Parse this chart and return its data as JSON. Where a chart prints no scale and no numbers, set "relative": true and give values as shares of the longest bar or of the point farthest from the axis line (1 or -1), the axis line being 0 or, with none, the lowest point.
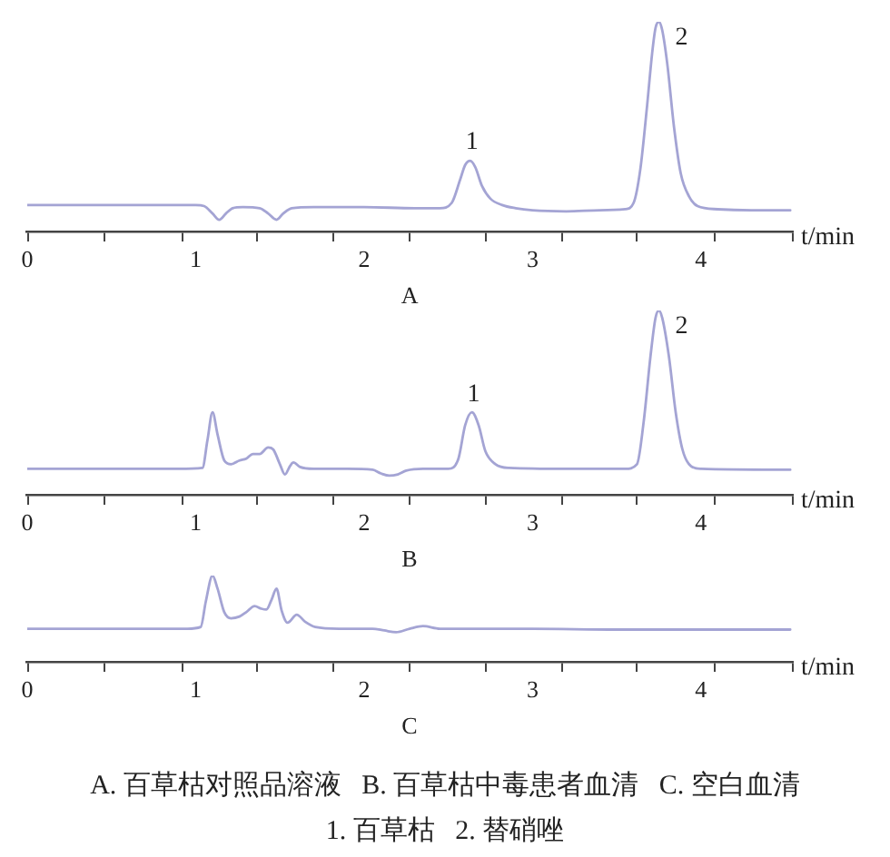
{
  "chart_data": [
    {
      "type": "line",
      "title": "A",
      "xlabel": "t/min",
      "relative": true,
      "color": "#a4a4d4",
      "xlim": [
        0,
        4.54
      ],
      "xticks": [
        0,
        {
          "value": 0.46,
          "label": null
        },
        {
          "value": 0.92,
          "label": null
        },
        1,
        {
          "value": 1.36,
          "label": null
        },
        {
          "value": 1.82,
          "label": null
        },
        2,
        {
          "value": 2.27,
          "label": null
        },
        {
          "value": 2.72,
          "label": null
        },
        3,
        {
          "value": 3.18,
          "label": null
        },
        {
          "value": 3.62,
          "label": null
        },
        4,
        {
          "value": 4.08,
          "label": null
        },
        {
          "value": 4.54,
          "label": null
        }
      ],
      "x": [
        0,
        0.5,
        1.0,
        1.05,
        1.1,
        1.14,
        1.18,
        1.22,
        1.28,
        1.38,
        1.43,
        1.48,
        1.52,
        1.57,
        1.7,
        2.0,
        2.3,
        2.45,
        2.52,
        2.57,
        2.6,
        2.63,
        2.66,
        2.7,
        2.75,
        2.82,
        2.9,
        3.0,
        3.2,
        3.4,
        3.55,
        3.6,
        3.64,
        3.68,
        3.71,
        3.73,
        3.75,
        3.77,
        3.8,
        3.84,
        3.88,
        3.93,
        3.98,
        4.1,
        4.3,
        4.53
      ],
      "values": [
        0.13,
        0.13,
        0.13,
        0.125,
        0.09,
        0.06,
        0.09,
        0.115,
        0.12,
        0.115,
        0.09,
        0.06,
        0.09,
        0.115,
        0.12,
        0.12,
        0.115,
        0.115,
        0.14,
        0.25,
        0.32,
        0.34,
        0.31,
        0.22,
        0.16,
        0.13,
        0.115,
        0.105,
        0.1,
        0.105,
        0.11,
        0.14,
        0.3,
        0.6,
        0.85,
        0.97,
        1.0,
        0.96,
        0.8,
        0.5,
        0.28,
        0.17,
        0.125,
        0.11,
        0.105,
        0.105
      ],
      "annotations": [
        {
          "text": "1",
          "x": 2.63,
          "y": 0.34
        },
        {
          "text": "2",
          "x": 3.75,
          "y": 1.0
        }
      ]
    },
    {
      "type": "line",
      "title": "B",
      "xlabel": "t/min",
      "relative": true,
      "color": "#a4a4d4",
      "xlim": [
        0,
        4.54
      ],
      "xticks": [
        0,
        {
          "value": 0.46,
          "label": null
        },
        {
          "value": 0.92,
          "label": null
        },
        1,
        {
          "value": 1.36,
          "label": null
        },
        {
          "value": 1.82,
          "label": null
        },
        2,
        {
          "value": 2.27,
          "label": null
        },
        {
          "value": 2.72,
          "label": null
        },
        3,
        {
          "value": 3.18,
          "label": null
        },
        {
          "value": 3.62,
          "label": null
        },
        4,
        {
          "value": 4.08,
          "label": null
        },
        {
          "value": 4.54,
          "label": null
        }
      ],
      "x": [
        0,
        0.9,
        1.04,
        1.07,
        1.1,
        1.13,
        1.17,
        1.21,
        1.26,
        1.3,
        1.34,
        1.38,
        1.43,
        1.46,
        1.5,
        1.53,
        1.56,
        1.58,
        1.62,
        1.7,
        1.9,
        2.05,
        2.1,
        2.15,
        2.2,
        2.25,
        2.35,
        2.5,
        2.56,
        2.6,
        2.64,
        2.68,
        2.72,
        2.78,
        2.86,
        3.2,
        3.55,
        3.62,
        3.66,
        3.7,
        3.73,
        3.75,
        3.77,
        3.81,
        3.85,
        3.89,
        3.94,
        4.0,
        4.53
      ],
      "values": [
        0.145,
        0.145,
        0.15,
        0.3,
        0.45,
        0.33,
        0.19,
        0.17,
        0.19,
        0.2,
        0.225,
        0.225,
        0.26,
        0.25,
        0.17,
        0.115,
        0.16,
        0.18,
        0.155,
        0.145,
        0.145,
        0.14,
        0.12,
        0.108,
        0.115,
        0.135,
        0.145,
        0.145,
        0.2,
        0.38,
        0.45,
        0.38,
        0.24,
        0.17,
        0.15,
        0.145,
        0.145,
        0.17,
        0.4,
        0.75,
        0.96,
        1.0,
        0.96,
        0.75,
        0.45,
        0.25,
        0.16,
        0.145,
        0.14
      ],
      "annotations": [
        {
          "text": "1",
          "x": 2.64,
          "y": 0.45
        },
        {
          "text": "2",
          "x": 3.75,
          "y": 1.0
        }
      ]
    },
    {
      "type": "line",
      "title": "C",
      "xlabel": "t/min",
      "relative": true,
      "color": "#a4a4d4",
      "xlim": [
        0,
        4.54
      ],
      "xticks": [
        0,
        {
          "value": 0.46,
          "label": null
        },
        {
          "value": 0.92,
          "label": null
        },
        1,
        {
          "value": 1.36,
          "label": null
        },
        {
          "value": 1.82,
          "label": null
        },
        2,
        {
          "value": 2.27,
          "label": null
        },
        {
          "value": 2.72,
          "label": null
        },
        3,
        {
          "value": 3.18,
          "label": null
        },
        {
          "value": 3.62,
          "label": null
        },
        4,
        {
          "value": 4.08,
          "label": null
        },
        {
          "value": 4.54,
          "label": null
        }
      ],
      "x": [
        0,
        0.95,
        1.03,
        1.06,
        1.1,
        1.13,
        1.17,
        1.21,
        1.26,
        1.3,
        1.35,
        1.39,
        1.42,
        1.45,
        1.48,
        1.51,
        1.545,
        1.6,
        1.65,
        1.71,
        1.85,
        2.05,
        2.12,
        2.19,
        2.27,
        2.35,
        2.45,
        3.0,
        3.5,
        4.53
      ],
      "values": [
        0.39,
        0.39,
        0.41,
        0.7,
        1.0,
        0.85,
        0.58,
        0.51,
        0.53,
        0.58,
        0.65,
        0.62,
        0.61,
        0.72,
        0.85,
        0.6,
        0.46,
        0.55,
        0.47,
        0.41,
        0.39,
        0.39,
        0.37,
        0.35,
        0.39,
        0.42,
        0.39,
        0.39,
        0.38,
        0.38
      ],
      "annotations": [
        "A. 百草枯对照品溶液   B. 百草枯中毒患者血清   C. 空白血清",
        "1. 百草枯   2. 替硝唑"
      ]
    }
  ]
}
